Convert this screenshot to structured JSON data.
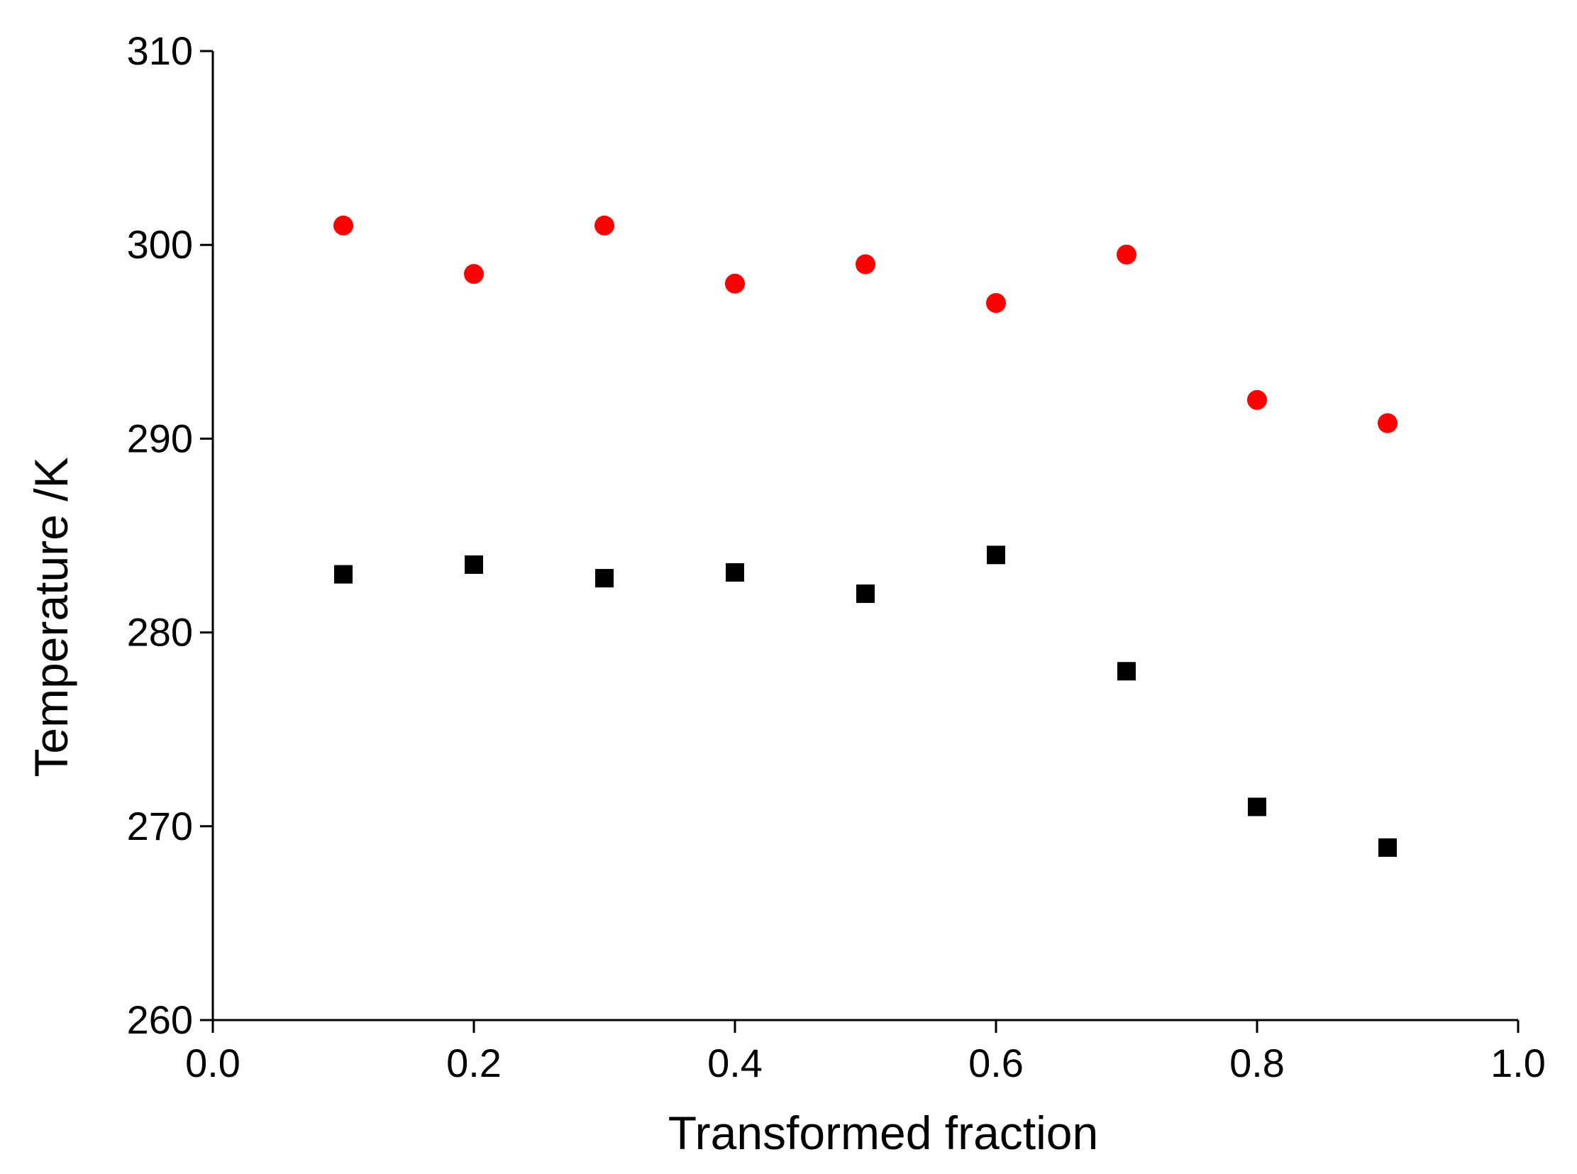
{
  "chart_data": {
    "type": "scatter",
    "xlabel": "Transformed fraction",
    "ylabel": "Temperature /K",
    "xlim": [
      0.0,
      1.0
    ],
    "ylim": [
      260,
      310
    ],
    "x_ticks": [
      "0.0",
      "0.2",
      "0.4",
      "0.6",
      "0.8",
      "1.0"
    ],
    "y_ticks": [
      "260",
      "270",
      "280",
      "290",
      "300",
      "310"
    ],
    "grid": false,
    "legend": "none",
    "series": [
      {
        "marker": "circle",
        "color": "#ff0000",
        "x": [
          0.1,
          0.2,
          0.3,
          0.4,
          0.5,
          0.6,
          0.7,
          0.8,
          0.9
        ],
        "y": [
          301.0,
          298.5,
          301.0,
          298.0,
          299.0,
          297.0,
          299.5,
          292.0,
          290.8
        ]
      },
      {
        "marker": "square",
        "color": "#000000",
        "x": [
          0.1,
          0.2,
          0.3,
          0.4,
          0.5,
          0.6,
          0.7,
          0.8,
          0.9
        ],
        "y": [
          283.0,
          283.5,
          282.8,
          283.1,
          282.0,
          284.0,
          278.0,
          271.0,
          268.9
        ]
      }
    ]
  }
}
